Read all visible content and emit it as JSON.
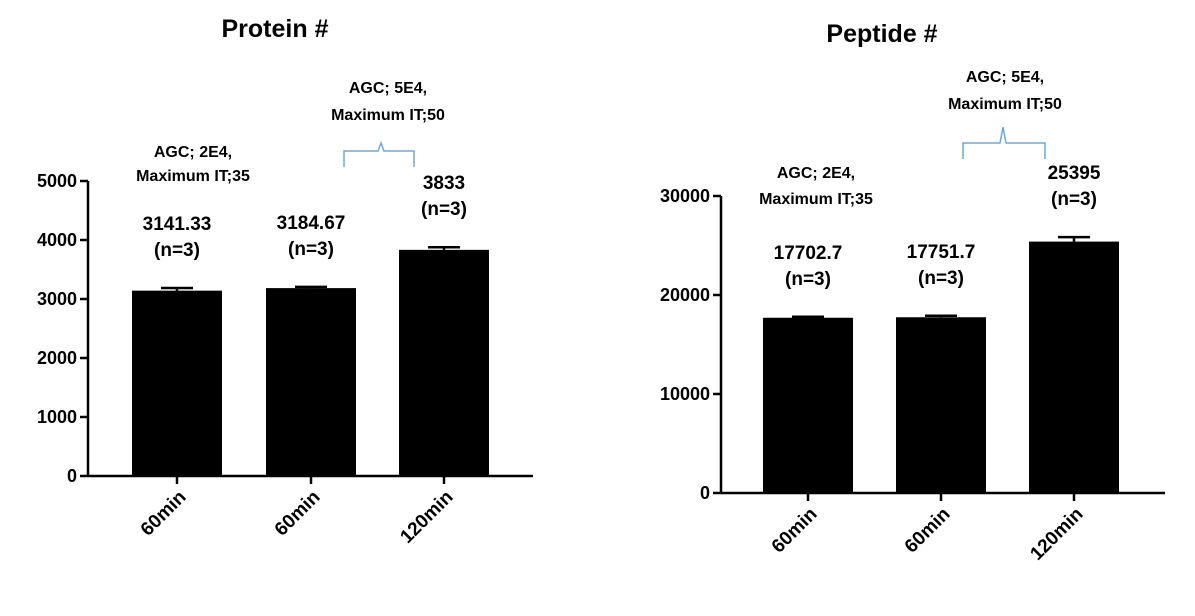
{
  "chart_data": [
    {
      "type": "bar",
      "title": "Protein #",
      "categories": [
        "60min",
        "60min",
        "120min"
      ],
      "values": [
        3141.33,
        3184.67,
        3833
      ],
      "error": [
        45,
        20,
        45
      ],
      "value_labels": [
        "3141.33",
        "3184.67",
        "3833"
      ],
      "n_labels": [
        "(n=3)",
        "(n=3)",
        "(n=3)"
      ],
      "ylim": [
        0,
        5000
      ],
      "yticks": [
        0,
        1000,
        2000,
        3000,
        4000,
        5000
      ],
      "tick_labels": [
        "0",
        "1000",
        "2000",
        "3000",
        "4000",
        "5000"
      ],
      "xlabel": "",
      "ylabel": "",
      "annotations": {
        "agc_2e4": [
          "AGC; 2E4,",
          "Maximum IT;35"
        ],
        "agc_5e4": [
          "AGC; 5E4,",
          "Maximum IT;50"
        ]
      },
      "bar_color": "#000000",
      "bracket_color": "#6fa8dc"
    },
    {
      "type": "bar",
      "title": "Peptide #",
      "categories": [
        "60min",
        "60min",
        "120min"
      ],
      "values": [
        17702.7,
        17751.7,
        25395
      ],
      "error": [
        100,
        150,
        450
      ],
      "value_labels": [
        "17702.7",
        "17751.7",
        "25395"
      ],
      "n_labels": [
        "(n=3)",
        "(n=3)",
        "(n=3)"
      ],
      "ylim": [
        0,
        30000
      ],
      "yticks": [
        0,
        10000,
        20000,
        30000
      ],
      "tick_labels": [
        "0",
        "10000",
        "20000",
        "30000"
      ],
      "xlabel": "",
      "ylabel": "",
      "annotations": {
        "agc_2e4": [
          "AGC; 2E4,",
          "Maximum IT;35"
        ],
        "agc_5e4": [
          "AGC; 5E4,",
          "Maximum IT;50"
        ]
      },
      "bar_color": "#000000",
      "bracket_color": "#6fa8dc"
    }
  ]
}
